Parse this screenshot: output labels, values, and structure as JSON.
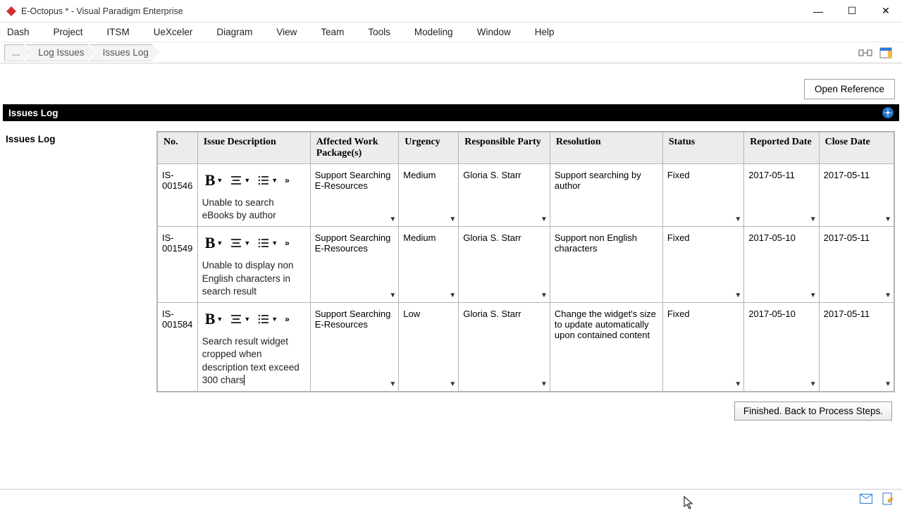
{
  "window": {
    "title": "E-Octopus * - Visual Paradigm Enterprise",
    "minimize": "—",
    "maximize": "☐",
    "close": "✕"
  },
  "menu": [
    "Dash",
    "Project",
    "ITSM",
    "UeXceler",
    "Diagram",
    "View",
    "Team",
    "Tools",
    "Modeling",
    "Window",
    "Help"
  ],
  "breadcrumb": [
    "...",
    "Log Issues",
    "Issues Log"
  ],
  "buttons": {
    "open_reference": "Open Reference",
    "finished": "Finished. Back to Process Steps."
  },
  "black_bar_title": "Issues Log",
  "side_label": "Issues Log",
  "table": {
    "columns": [
      "No.",
      "Issue Description",
      "Affected Work Package(s)",
      "Urgency",
      "Responsible Party",
      "Resolution",
      "Status",
      "Reported Date",
      "Close Date"
    ],
    "rows": [
      {
        "no": "IS-001546",
        "description": "Unable to search eBooks by author",
        "work_package": "Support Searching E-Resources",
        "urgency": "Medium",
        "party": "Gloria S. Starr",
        "resolution": "Support searching by author",
        "status": "Fixed",
        "reported": "2017-05-11",
        "close": "2017-05-11"
      },
      {
        "no": "IS-001549",
        "description": "Unable to display non English characters in search result",
        "work_package": "Support Searching E-Resources",
        "urgency": "Medium",
        "party": "Gloria S. Starr",
        "resolution": "Support non English characters",
        "status": "Fixed",
        "reported": "2017-05-10",
        "close": "2017-05-11"
      },
      {
        "no": "IS-001584",
        "description": "Search result widget cropped when description text exceed 300 chars",
        "work_package": "Support Searching E-Resources",
        "urgency": "Low",
        "party": "Gloria S. Starr",
        "resolution": "Change the widget's size to update automatically upon contained content",
        "status": "Fixed",
        "reported": "2017-05-10",
        "close": "2017-05-11"
      }
    ]
  },
  "colors": {
    "header_bg": "#ececec",
    "border": "#b5b5b5",
    "black_bar": "#000000",
    "gear_bg": "#1e73c7"
  }
}
